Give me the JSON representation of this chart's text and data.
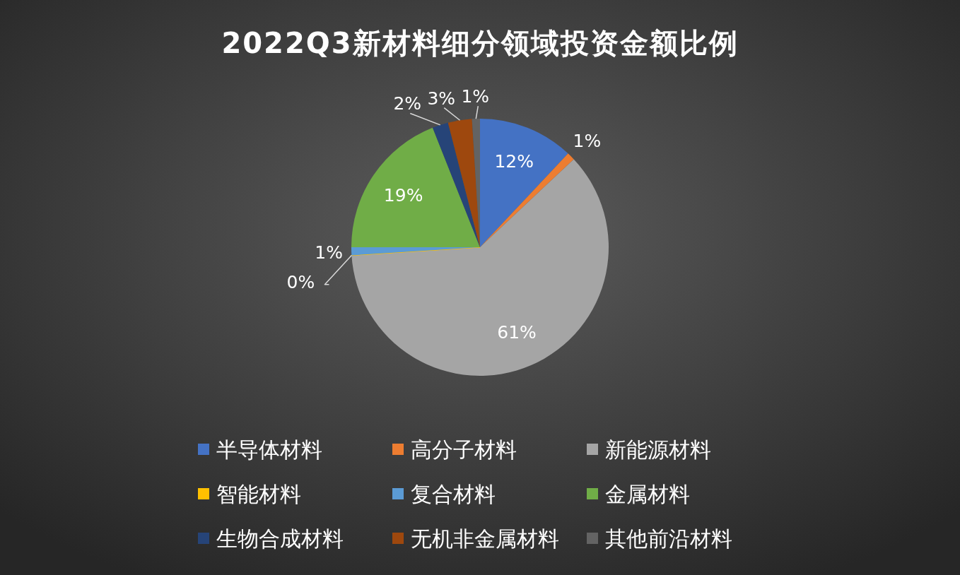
{
  "chart_data": {
    "type": "pie",
    "title": "2022Q3新材料细分领域投资金额比例",
    "categories": [
      "半导体材料",
      "高分子材料",
      "新能源材料",
      "智能材料",
      "复合材料",
      "金属材料",
      "生物合成材料",
      "无机非金属材料",
      "其他前沿材料"
    ],
    "values": [
      12,
      1,
      61,
      0,
      1,
      19,
      2,
      3,
      1
    ],
    "value_labels": [
      "12%",
      "1%",
      "61%",
      "0%",
      "1%",
      "19%",
      "2%",
      "3%",
      "1%"
    ],
    "colors": [
      "#4472c4",
      "#ed7d31",
      "#a5a5a5",
      "#ffc000",
      "#5b9bd5",
      "#70ad47",
      "#264478",
      "#9e480e",
      "#636363"
    ],
    "legend": "bottom"
  }
}
